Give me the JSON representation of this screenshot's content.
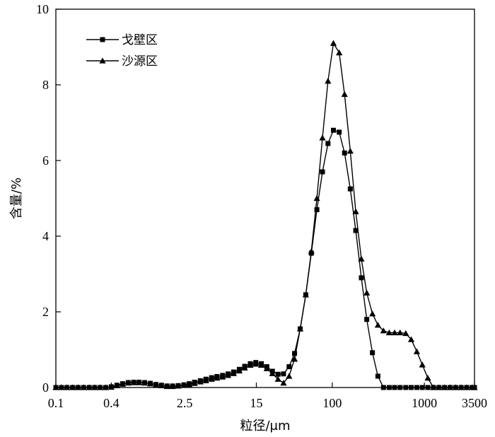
{
  "chart_data": {
    "type": "line",
    "xlabel": "粒径/μm",
    "ylabel": "含量/%",
    "x_scale": "log",
    "xlim": [
      0.1,
      3500
    ],
    "ylim": [
      0,
      10
    ],
    "x_ticks": [
      {
        "value": 0.1,
        "label": "0.1"
      },
      {
        "value": 0.4,
        "label": "0.4"
      },
      {
        "value": 2.5,
        "label": "2.5"
      },
      {
        "value": 15,
        "label": "15"
      },
      {
        "value": 100,
        "label": "100"
      },
      {
        "value": 1000,
        "label": "1000"
      },
      {
        "value": 3500,
        "label": "3500"
      }
    ],
    "y_ticks": [
      {
        "value": 0,
        "label": "0"
      },
      {
        "value": 2,
        "label": "2"
      },
      {
        "value": 4,
        "label": "4"
      },
      {
        "value": 6,
        "label": "6"
      },
      {
        "value": 8,
        "label": "8"
      },
      {
        "value": 10,
        "label": "10"
      }
    ],
    "legend_position": "top-left",
    "series": [
      {
        "name": "戈壁区",
        "marker": "square",
        "points": [
          [
            0.1,
            0
          ],
          [
            0.115,
            0
          ],
          [
            0.132,
            0
          ],
          [
            0.152,
            0
          ],
          [
            0.174,
            0
          ],
          [
            0.2,
            0
          ],
          [
            0.23,
            0
          ],
          [
            0.264,
            0
          ],
          [
            0.303,
            0
          ],
          [
            0.348,
            0
          ],
          [
            0.4,
            0.02
          ],
          [
            0.46,
            0.06
          ],
          [
            0.53,
            0.1
          ],
          [
            0.61,
            0.13
          ],
          [
            0.7,
            0.14
          ],
          [
            0.8,
            0.14
          ],
          [
            0.92,
            0.13
          ],
          [
            1.06,
            0.11
          ],
          [
            1.22,
            0.08
          ],
          [
            1.4,
            0.06
          ],
          [
            1.61,
            0.04
          ],
          [
            1.85,
            0.04
          ],
          [
            2.13,
            0.05
          ],
          [
            2.45,
            0.07
          ],
          [
            2.8,
            0.1
          ],
          [
            3.2,
            0.14
          ],
          [
            3.7,
            0.18
          ],
          [
            4.25,
            0.22
          ],
          [
            4.9,
            0.26
          ],
          [
            5.6,
            0.29
          ],
          [
            6.45,
            0.32
          ],
          [
            7.4,
            0.36
          ],
          [
            8.5,
            0.41
          ],
          [
            9.8,
            0.48
          ],
          [
            11.2,
            0.56
          ],
          [
            12.9,
            0.63
          ],
          [
            14.8,
            0.66
          ],
          [
            17,
            0.63
          ],
          [
            19.5,
            0.55
          ],
          [
            22.4,
            0.43
          ],
          [
            25.8,
            0.35
          ],
          [
            29.6,
            0.36
          ],
          [
            34,
            0.55
          ],
          [
            39,
            0.9
          ],
          [
            44.9,
            1.55
          ],
          [
            51.6,
            2.45
          ],
          [
            59.3,
            3.55
          ],
          [
            68.1,
            4.7
          ],
          [
            78.3,
            5.7
          ],
          [
            89.9,
            6.45
          ],
          [
            103,
            6.8
          ],
          [
            119,
            6.75
          ],
          [
            136,
            6.2
          ],
          [
            157,
            5.25
          ],
          [
            180,
            4.15
          ],
          [
            207,
            2.9
          ],
          [
            237,
            1.8
          ],
          [
            273,
            0.92
          ],
          [
            313,
            0.3
          ],
          [
            360,
            0
          ],
          [
            415,
            0
          ],
          [
            475,
            0
          ],
          [
            545,
            0
          ],
          [
            628,
            0
          ],
          [
            720,
            0
          ],
          [
            828,
            0
          ],
          [
            950,
            0
          ],
          [
            1090,
            0
          ],
          [
            1255,
            0
          ],
          [
            1440,
            0
          ],
          [
            1655,
            0
          ],
          [
            1900,
            0
          ],
          [
            2180,
            0
          ],
          [
            2505,
            0
          ],
          [
            2880,
            0
          ],
          [
            3305,
            0
          ],
          [
            3500,
            0
          ]
        ]
      },
      {
        "name": "沙源区",
        "marker": "triangle",
        "points": [
          [
            0.1,
            0
          ],
          [
            0.115,
            0
          ],
          [
            0.132,
            0
          ],
          [
            0.152,
            0
          ],
          [
            0.174,
            0
          ],
          [
            0.2,
            0
          ],
          [
            0.23,
            0
          ],
          [
            0.264,
            0
          ],
          [
            0.303,
            0
          ],
          [
            0.348,
            0
          ],
          [
            0.4,
            0.01
          ],
          [
            0.46,
            0.05
          ],
          [
            0.53,
            0.09
          ],
          [
            0.61,
            0.12
          ],
          [
            0.7,
            0.13
          ],
          [
            0.8,
            0.13
          ],
          [
            0.92,
            0.12
          ],
          [
            1.06,
            0.1
          ],
          [
            1.22,
            0.07
          ],
          [
            1.4,
            0.05
          ],
          [
            1.61,
            0.03
          ],
          [
            1.85,
            0.03
          ],
          [
            2.13,
            0.04
          ],
          [
            2.45,
            0.06
          ],
          [
            2.8,
            0.08
          ],
          [
            3.2,
            0.11
          ],
          [
            3.7,
            0.15
          ],
          [
            4.25,
            0.18
          ],
          [
            4.9,
            0.22
          ],
          [
            5.6,
            0.25
          ],
          [
            6.45,
            0.28
          ],
          [
            7.4,
            0.32
          ],
          [
            8.5,
            0.37
          ],
          [
            9.8,
            0.44
          ],
          [
            11.2,
            0.52
          ],
          [
            12.9,
            0.59
          ],
          [
            14.8,
            0.62
          ],
          [
            17,
            0.59
          ],
          [
            19.5,
            0.5
          ],
          [
            22.4,
            0.37
          ],
          [
            25.8,
            0.22
          ],
          [
            29.6,
            0.12
          ],
          [
            34,
            0.3
          ],
          [
            39,
            0.75
          ],
          [
            44.9,
            1.55
          ],
          [
            51.6,
            2.45
          ],
          [
            59.3,
            3.6
          ],
          [
            68.1,
            5.0
          ],
          [
            78.3,
            6.6
          ],
          [
            89.9,
            8.1
          ],
          [
            103,
            9.1
          ],
          [
            119,
            8.85
          ],
          [
            136,
            7.75
          ],
          [
            157,
            6.25
          ],
          [
            180,
            4.65
          ],
          [
            207,
            3.4
          ],
          [
            237,
            2.5
          ],
          [
            273,
            1.95
          ],
          [
            313,
            1.65
          ],
          [
            360,
            1.5
          ],
          [
            415,
            1.45
          ],
          [
            475,
            1.45
          ],
          [
            545,
            1.45
          ],
          [
            628,
            1.43
          ],
          [
            720,
            1.27
          ],
          [
            828,
            0.95
          ],
          [
            950,
            0.6
          ],
          [
            1090,
            0.25
          ],
          [
            1255,
            0
          ],
          [
            1440,
            0
          ],
          [
            1655,
            0
          ],
          [
            1900,
            0
          ],
          [
            2180,
            0
          ],
          [
            2505,
            0
          ],
          [
            2880,
            0
          ],
          [
            3305,
            0
          ],
          [
            3500,
            0
          ]
        ]
      }
    ]
  }
}
